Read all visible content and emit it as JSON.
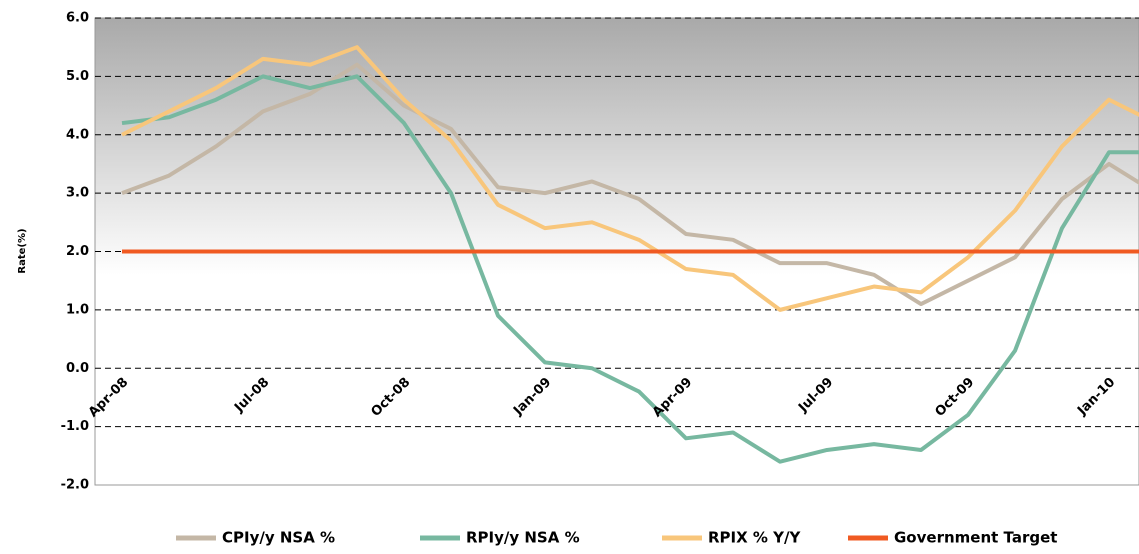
{
  "chart_data": {
    "type": "line",
    "y_label": "Rate(%)",
    "categories": [
      "Apr-08",
      null,
      null,
      "Jul-08",
      null,
      null,
      "Oct-08",
      null,
      null,
      "Jan-09",
      null,
      null,
      "Apr-09",
      null,
      null,
      "Jul-09",
      null,
      null,
      "Oct-09",
      null,
      null,
      "Jan-10",
      null
    ],
    "series": [
      {
        "name": "CPIy/y NSA %",
        "color": "#c4b7a6",
        "values": [
          3.0,
          3.3,
          3.8,
          4.4,
          4.7,
          5.2,
          4.5,
          4.1,
          3.1,
          3.0,
          3.2,
          2.9,
          2.3,
          2.2,
          1.8,
          1.8,
          1.6,
          1.1,
          1.5,
          1.9,
          2.9,
          3.5,
          3.0
        ]
      },
      {
        "name": "RPIy/y NSA %",
        "color": "#77b8a0",
        "values": [
          4.2,
          4.3,
          4.6,
          5.0,
          4.8,
          5.0,
          4.2,
          3.0,
          0.9,
          0.1,
          0.0,
          -0.4,
          -1.2,
          -1.1,
          -1.6,
          -1.4,
          -1.3,
          -1.4,
          -0.8,
          0.3,
          2.4,
          3.7,
          3.7
        ]
      },
      {
        "name": "RPIX % Y/Y",
        "color": "#f8c67b",
        "values": [
          4.0,
          4.4,
          4.8,
          5.3,
          5.2,
          5.5,
          4.6,
          3.9,
          2.8,
          2.4,
          2.5,
          2.2,
          1.7,
          1.6,
          1.0,
          1.2,
          1.4,
          1.3,
          1.9,
          2.7,
          3.8,
          4.6,
          4.2
        ]
      },
      {
        "name": "Government Target",
        "color": "#f05a22",
        "values": [
          2.0,
          2.0,
          2.0,
          2.0,
          2.0,
          2.0,
          2.0,
          2.0,
          2.0,
          2.0,
          2.0,
          2.0,
          2.0,
          2.0,
          2.0,
          2.0,
          2.0,
          2.0,
          2.0,
          2.0,
          2.0,
          2.0,
          2.0
        ]
      }
    ],
    "ylim": [
      -2,
      6
    ],
    "yticks": [
      {
        "value": -2,
        "label": "-2.0"
      },
      {
        "value": -1,
        "label": "-1.0"
      },
      {
        "value": 0,
        "label": "0.0"
      },
      {
        "value": 1,
        "label": "1.0"
      },
      {
        "value": 2,
        "label": "2.0"
      },
      {
        "value": 3,
        "label": "3.0"
      },
      {
        "value": 4,
        "label": "4.0"
      },
      {
        "value": 5,
        "label": "5.0"
      },
      {
        "value": 6,
        "label": "6.0"
      }
    ],
    "grid": true,
    "legend": "bottom"
  }
}
